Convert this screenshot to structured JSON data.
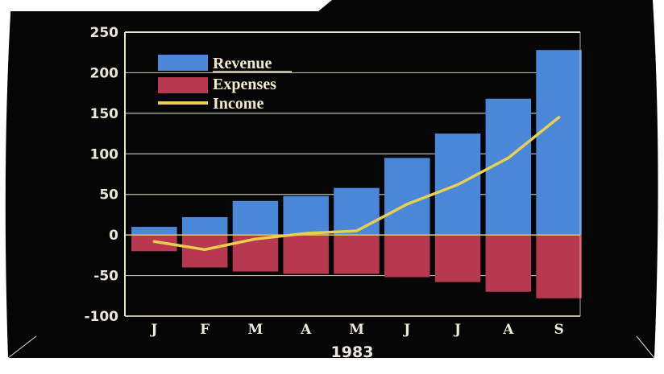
{
  "colors": {
    "screen": "#050505",
    "frame": "#ffffff",
    "axis": "#e8e4cc",
    "grid": "#dcd8c4",
    "zero_line": "#d8cf55",
    "revenue": "#4a87d8",
    "expenses": "#b8384f",
    "income": "#e8cf52"
  },
  "chart_data": {
    "type": "bar",
    "categories": [
      "J",
      "F",
      "M",
      "A",
      "M",
      "J",
      "J",
      "A",
      "S"
    ],
    "series": [
      {
        "name": "Revenue",
        "kind": "bar",
        "values": [
          10,
          22,
          42,
          48,
          58,
          95,
          125,
          168,
          228
        ]
      },
      {
        "name": "Expenses",
        "kind": "bar",
        "values": [
          -20,
          -40,
          -45,
          -48,
          -48,
          -52,
          -58,
          -70,
          -78
        ]
      },
      {
        "name": "Income",
        "kind": "line",
        "values": [
          -8,
          -18,
          -5,
          2,
          5,
          38,
          62,
          95,
          145
        ]
      }
    ],
    "title": "",
    "xlabel": "1983",
    "ylabel": "",
    "ylim": [
      -100,
      250
    ],
    "yticks": [
      250,
      200,
      150,
      100,
      50,
      0,
      -50,
      -100
    ],
    "yticklabels": [
      "250",
      "200",
      "150",
      "100",
      "50",
      "0",
      "-50",
      "-100"
    ],
    "grid": true,
    "legend": "top-left",
    "legend_labels": [
      "Revenue",
      "Expenses",
      "Income"
    ]
  }
}
